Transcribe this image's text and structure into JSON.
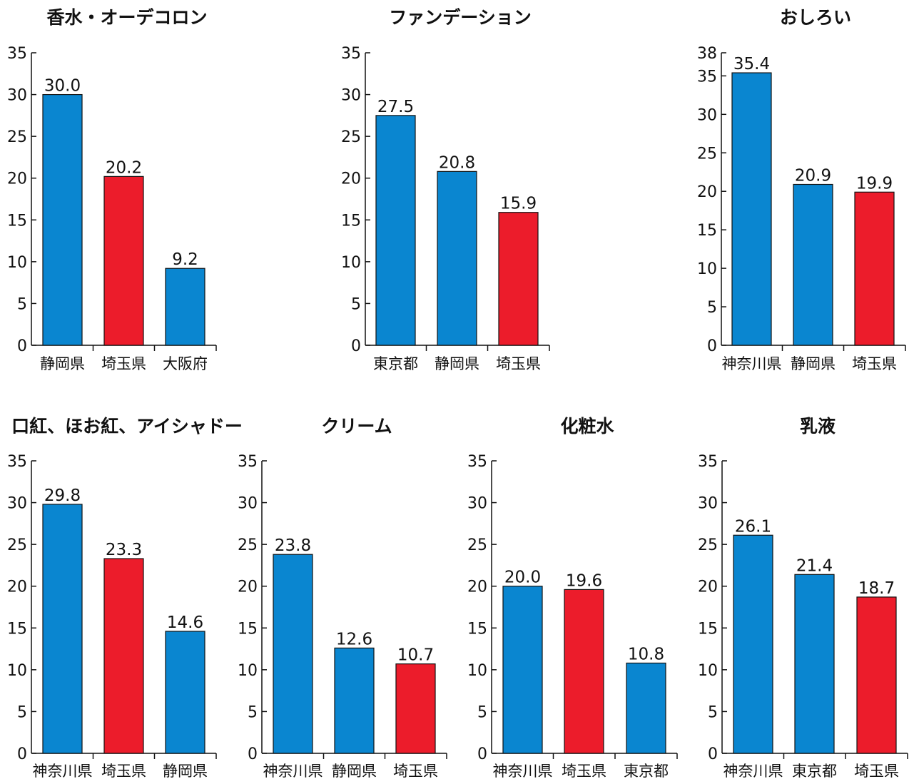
{
  "colors": {
    "blue": "#0a86d0",
    "red": "#ec1c2b"
  },
  "chart_data": [
    {
      "type": "bar",
      "title": "香水・オーデコロン",
      "categories": [
        "静岡県",
        "埼玉県",
        "大阪府"
      ],
      "values": [
        30.0,
        20.2,
        9.2
      ],
      "value_labels": [
        "30.0",
        "20.2",
        "9.2"
      ],
      "bar_colors": [
        "blue",
        "red",
        "blue"
      ],
      "ylim": [
        0,
        35
      ],
      "yticks": [
        0,
        5,
        10,
        15,
        20,
        25,
        30,
        35
      ]
    },
    {
      "type": "bar",
      "title": "ファンデーション",
      "categories": [
        "東京都",
        "静岡県",
        "埼玉県"
      ],
      "values": [
        27.5,
        20.8,
        15.9
      ],
      "value_labels": [
        "27.5",
        "20.8",
        "15.9"
      ],
      "bar_colors": [
        "blue",
        "blue",
        "red"
      ],
      "ylim": [
        0,
        35
      ],
      "yticks": [
        0,
        5,
        10,
        15,
        20,
        25,
        30,
        35
      ]
    },
    {
      "type": "bar",
      "title": "おしろい",
      "categories": [
        "神奈川県",
        "静岡県",
        "埼玉県"
      ],
      "values": [
        35.4,
        20.9,
        19.9
      ],
      "value_labels": [
        "35.4",
        "20.9",
        "19.9"
      ],
      "bar_colors": [
        "blue",
        "blue",
        "red"
      ],
      "ylim": [
        0,
        38
      ],
      "yticks": [
        0,
        5,
        10,
        15,
        20,
        25,
        30,
        35,
        38
      ]
    },
    {
      "type": "bar",
      "title": "口紅、ほお紅、アイシャドー",
      "categories": [
        "神奈川県",
        "埼玉県",
        "静岡県"
      ],
      "values": [
        29.8,
        23.3,
        14.6
      ],
      "value_labels": [
        "29.8",
        "23.3",
        "14.6"
      ],
      "bar_colors": [
        "blue",
        "red",
        "blue"
      ],
      "ylim": [
        0,
        35
      ],
      "yticks": [
        0,
        5,
        10,
        15,
        20,
        25,
        30,
        35
      ]
    },
    {
      "type": "bar",
      "title": "クリーム",
      "categories": [
        "神奈川県",
        "静岡県",
        "埼玉県"
      ],
      "values": [
        23.8,
        12.6,
        10.7
      ],
      "value_labels": [
        "23.8",
        "12.6",
        "10.7"
      ],
      "bar_colors": [
        "blue",
        "blue",
        "red"
      ],
      "ylim": [
        0,
        35
      ],
      "yticks": [
        0,
        5,
        10,
        15,
        20,
        25,
        30,
        35
      ]
    },
    {
      "type": "bar",
      "title": "化粧水",
      "categories": [
        "神奈川県",
        "埼玉県",
        "東京都"
      ],
      "values": [
        20.0,
        19.6,
        10.8
      ],
      "value_labels": [
        "20.0",
        "19.6",
        "10.8"
      ],
      "bar_colors": [
        "blue",
        "red",
        "blue"
      ],
      "ylim": [
        0,
        35
      ],
      "yticks": [
        0,
        5,
        10,
        15,
        20,
        25,
        30,
        35
      ]
    },
    {
      "type": "bar",
      "title": "乳液",
      "categories": [
        "神奈川県",
        "東京都",
        "埼玉県"
      ],
      "values": [
        26.1,
        21.4,
        18.7
      ],
      "value_labels": [
        "26.1",
        "21.4",
        "18.7"
      ],
      "bar_colors": [
        "blue",
        "blue",
        "red"
      ],
      "ylim": [
        0,
        35
      ],
      "yticks": [
        0,
        5,
        10,
        15,
        20,
        25,
        30,
        35
      ]
    }
  ]
}
